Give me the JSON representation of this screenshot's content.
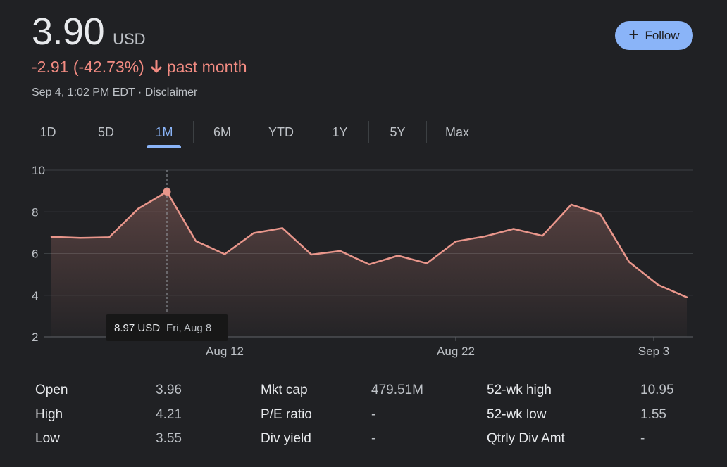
{
  "quote": {
    "price": "3.90",
    "currency": "USD",
    "change": "-2.91 (-42.73%)",
    "change_period": "past month",
    "timestamp": "Sep 4, 1:02 PM EDT",
    "separator": "·",
    "disclaimer": "Disclaimer",
    "follow_label": "Follow"
  },
  "colors": {
    "accent": "#8ab4f8",
    "negative": "#f28b82",
    "line": "#e9968b",
    "background": "#202124"
  },
  "tabs": [
    {
      "label": "1D",
      "active": false
    },
    {
      "label": "5D",
      "active": false
    },
    {
      "label": "1M",
      "active": true
    },
    {
      "label": "6M",
      "active": false
    },
    {
      "label": "YTD",
      "active": false
    },
    {
      "label": "1Y",
      "active": false
    },
    {
      "label": "5Y",
      "active": false
    },
    {
      "label": "Max",
      "active": false
    }
  ],
  "tooltip": {
    "price": "8.97 USD",
    "date": "Fri, Aug 8"
  },
  "chart_data": {
    "type": "area",
    "title": "",
    "xlabel": "",
    "ylabel": "",
    "ylim": [
      2,
      10
    ],
    "yticks": [
      10,
      8,
      6,
      4,
      2
    ],
    "x_tick_labels": [
      {
        "label": "Aug 12",
        "index": 6
      },
      {
        "label": "Aug 22",
        "index": 14
      },
      {
        "label": "Sep 3",
        "index": 21
      }
    ],
    "highlight_index": 4,
    "series": [
      {
        "name": "Price (USD)",
        "values": [
          6.8,
          6.75,
          6.78,
          8.15,
          8.97,
          6.6,
          5.97,
          6.98,
          7.22,
          5.95,
          6.12,
          5.48,
          5.9,
          5.53,
          6.58,
          6.82,
          7.18,
          6.85,
          8.35,
          7.9,
          5.6,
          4.5,
          3.9
        ]
      }
    ]
  },
  "stats": {
    "col1": [
      {
        "label": "Open",
        "value": "3.96"
      },
      {
        "label": "High",
        "value": "4.21"
      },
      {
        "label": "Low",
        "value": "3.55"
      }
    ],
    "col2": [
      {
        "label": "Mkt cap",
        "value": "479.51M"
      },
      {
        "label": "P/E ratio",
        "value": "-"
      },
      {
        "label": "Div yield",
        "value": "-"
      }
    ],
    "col3": [
      {
        "label": "52-wk high",
        "value": "10.95"
      },
      {
        "label": "52-wk low",
        "value": "1.55"
      },
      {
        "label": "Qtrly Div Amt",
        "value": "-"
      }
    ]
  }
}
